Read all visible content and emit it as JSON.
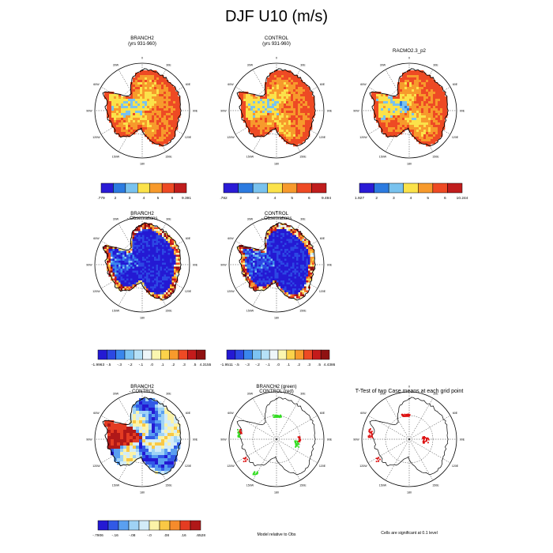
{
  "title": "DJF U10 (m/s)",
  "panels": [
    {
      "id": "branch2",
      "title": "BRANCH2",
      "subtitle": "(yrs 931-960)",
      "kind": "speed"
    },
    {
      "id": "control",
      "title": "CONTROL",
      "subtitle": "(yrs 931-960)",
      "kind": "speed"
    },
    {
      "id": "racmo",
      "title": "RACMO2.3_p2",
      "subtitle": "",
      "kind": "speed"
    },
    {
      "id": "branch2-obs",
      "title": "BRANCH2",
      "subtitle": "- Observations",
      "kind": "bias"
    },
    {
      "id": "control-obs",
      "title": "CONTROL",
      "subtitle": "- Observations",
      "kind": "bias"
    },
    {
      "id": "branch2-control",
      "title": "BRANCH2",
      "subtitle": "- CONTROL",
      "kind": "diff"
    },
    {
      "id": "model-rel-obs",
      "title": "BRANCH2 (green)",
      "subtitle": "CONTROL (red)",
      "kind": "points",
      "note": "Model relative to Obs"
    },
    {
      "id": "ttest",
      "title": "T-Test of two Case means at each grid point",
      "subtitle": "",
      "kind": "ttest",
      "note": "Cells are significant at 0.1 level"
    }
  ],
  "map_labels": {
    "lon": [
      "0",
      "30E",
      "60E",
      "90E",
      "120E",
      "150E",
      "180",
      "150W",
      "120W",
      "90W",
      "60W",
      "30W"
    ]
  },
  "colors": {
    "speed": [
      "#2a1bd6",
      "#2c7be0",
      "#79c2ee",
      "#fbe24a",
      "#f79a2c",
      "#ee4a24",
      "#c01d1d"
    ],
    "bias": [
      "#2419d3",
      "#2c48e3",
      "#3a86ec",
      "#7cc3f2",
      "#b6e1f7",
      "#eef6f9",
      "#fbf6b0",
      "#fbd24a",
      "#f89a2c",
      "#ee4a24",
      "#c41b1b",
      "#8f1111"
    ],
    "diff": [
      "#2419d3",
      "#3159e6",
      "#5a9ff0",
      "#9fd2f5",
      "#d3ecf8",
      "#fbf3a8",
      "#f9c845",
      "#f68b2b",
      "#e43c22",
      "#b01818"
    ],
    "green": "#33dd22",
    "red": "#dd1111"
  },
  "chart_data": [
    {
      "type": "heatmap",
      "panel": "BRANCH2 (yrs 931-960)",
      "colorbar_labels": [
        ".779",
        "2",
        "3",
        "4",
        "5",
        "6",
        "9.391"
      ]
    },
    {
      "type": "heatmap",
      "panel": "CONTROL (yrs 931-960)",
      "colorbar_labels": [
        ".782",
        "2",
        "3",
        "4",
        "5",
        "6",
        "9.494"
      ]
    },
    {
      "type": "heatmap",
      "panel": "RACMO2.3_p2",
      "colorbar_labels": [
        "1.927",
        "2",
        "3",
        "4",
        "5",
        "6",
        "10.244"
      ]
    },
    {
      "type": "heatmap",
      "panel": "BRANCH2 - Observations",
      "colorbar_labels": [
        "-1.9963",
        "-.5",
        "-.3",
        "-.2",
        "-.1",
        ".0",
        ".1",
        ".2",
        ".3",
        ".5",
        "4.3155"
      ]
    },
    {
      "type": "heatmap",
      "panel": "CONTROL - Observations",
      "colorbar_labels": [
        "-1.9511",
        "-.5",
        "-.3",
        "-.2",
        "-.1",
        ".0",
        ".1",
        ".2",
        ".3",
        ".5",
        "4.4386"
      ]
    },
    {
      "type": "heatmap",
      "panel": "BRANCH2 - CONTROL",
      "colorbar_labels": [
        "-.7906",
        "-.16",
        "-.08",
        "-.0",
        ".08",
        ".16",
        ".6528"
      ]
    }
  ]
}
